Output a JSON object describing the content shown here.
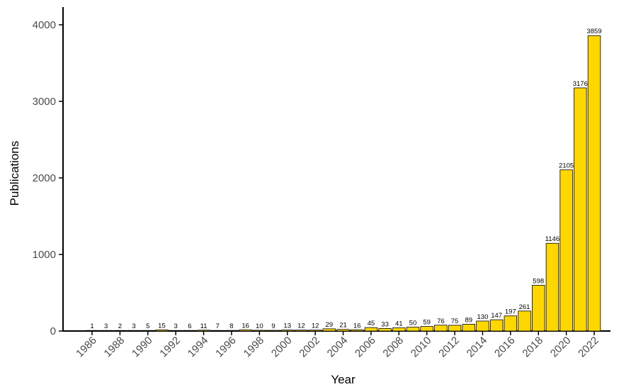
{
  "chart_data": {
    "type": "bar",
    "xlabel": "Year",
    "ylabel": "Publications",
    "ylim": [
      0,
      4000
    ],
    "yticks": [
      "0",
      "1000",
      "2000",
      "3000",
      "4000"
    ],
    "categories": [
      "1986",
      "1987",
      "1988",
      "1989",
      "1990",
      "1991",
      "1992",
      "1993",
      "1994",
      "1995",
      "1996",
      "1997",
      "1998",
      "1999",
      "2000",
      "2001",
      "2002",
      "2003",
      "2004",
      "2005",
      "2006",
      "2007",
      "2008",
      "2009",
      "2010",
      "2011",
      "2012",
      "2013",
      "2014",
      "2015",
      "2016",
      "2017",
      "2018",
      "2019",
      "2020",
      "2021",
      "2022"
    ],
    "xtick_labels": [
      "1986",
      "1988",
      "1990",
      "1992",
      "1994",
      "1996",
      "1998",
      "2000",
      "2002",
      "2004",
      "2006",
      "2008",
      "2010",
      "2012",
      "2014",
      "2016",
      "2018",
      "2020",
      "2022"
    ],
    "values": [
      1,
      3,
      2,
      3,
      5,
      15,
      3,
      6,
      11,
      7,
      8,
      16,
      10,
      9,
      13,
      12,
      12,
      29,
      21,
      16,
      45,
      33,
      41,
      50,
      59,
      76,
      75,
      89,
      130,
      147,
      197,
      261,
      598,
      1146,
      2105,
      3176,
      3859
    ],
    "data_labels": [
      "1",
      "3",
      "2",
      "3",
      "5",
      "15",
      "3",
      "6",
      "11",
      "7",
      "8",
      "16",
      "10",
      "9",
      "13",
      "12",
      "12",
      "29",
      "21",
      "16",
      "45",
      "33",
      "41",
      "50",
      "59",
      "76",
      "75",
      "89",
      "130",
      "147",
      "197",
      "261",
      "598",
      "1146",
      "2105",
      "3176",
      "3859"
    ],
    "bar_color": "#FFD700",
    "bar_edge_color": "#000000",
    "grid": false,
    "legend": "none"
  }
}
